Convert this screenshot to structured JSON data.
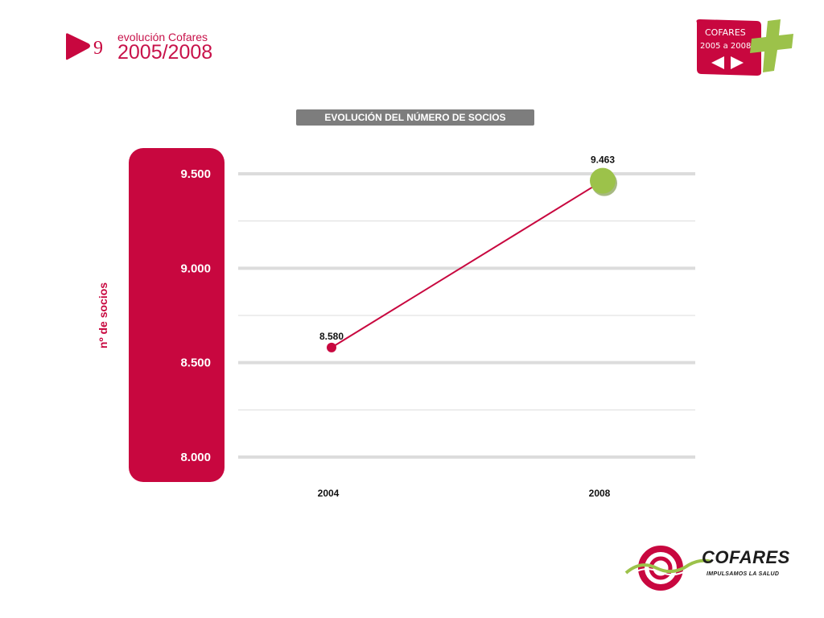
{
  "header": {
    "number": "9",
    "small_title": "evolución Cofares",
    "big_title": "2005/2008"
  },
  "badge": {
    "line1": "COFARES",
    "line2": "2005 a 2008",
    "icon": "plus-cross-icon"
  },
  "logo": {
    "word": "COFARES",
    "slogan": "IMPULSAMOS LA SALUD"
  },
  "colors": {
    "brand": "#c8073f",
    "accent_green": "#9cc24a",
    "title_bar": "#7d7d7d",
    "grid": "#dcdcdc"
  },
  "chart_data": {
    "type": "line",
    "title": "EVOLUCIÓN DEL NÚMERO DE SOCIOS",
    "xlabel": "",
    "ylabel": "nº de socios",
    "categories": [
      "2004",
      "2008"
    ],
    "series": [
      {
        "values": [
          8580,
          9463
        ],
        "data_labels": [
          "8.580",
          "9.463"
        ]
      }
    ],
    "ylim": [
      8000,
      9500
    ],
    "ticks": [
      8000,
      8250,
      8500,
      8750,
      9000,
      9250,
      9500
    ],
    "tick_labels": [
      "8.000",
      "",
      "8.500",
      "",
      "9.000",
      "",
      "9.500"
    ],
    "grid": true,
    "legend": "none"
  }
}
